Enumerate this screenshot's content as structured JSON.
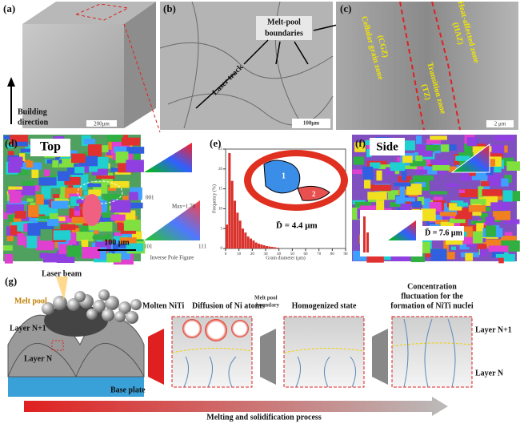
{
  "panels": {
    "a": {
      "label": "(a)",
      "axis_label": [
        "Building",
        "direction"
      ],
      "scale_bar": "200μm"
    },
    "b": {
      "label": "(b)",
      "callout": [
        "Melt-pool",
        "boundaries"
      ],
      "track": "Laser track",
      "scale_bar": "100μm"
    },
    "c": {
      "label": "(c)",
      "zones": [
        {
          "name": "Cellular grain zone",
          "abbr": "(CGZ)"
        },
        {
          "name": "Transition zone",
          "abbr": "(TZ)"
        },
        {
          "name": "Heat-affected zone",
          "abbr": "(HAZ)"
        }
      ],
      "scale_bar": "2 μm"
    },
    "d": {
      "label": "(d)",
      "view": "Top",
      "scale_bar": "100 μm",
      "ipf": {
        "max": "Max=1.79",
        "corners": [
          "001",
          "101",
          "111"
        ],
        "title": "Inverse Pole Figure"
      }
    },
    "e": {
      "label": "(e)",
      "mean": "D̄ = 4.4 μm",
      "grains": [
        "1",
        "2"
      ],
      "histogram": {
        "ylabel": "Frequency (%)",
        "xlabel": "Grain diameter (μm)",
        "bins": [
          0,
          2,
          4,
          6,
          8,
          10,
          12,
          14,
          16,
          18,
          20,
          22,
          24,
          26,
          28,
          30,
          32,
          34,
          36,
          38,
          40
        ],
        "values": [
          6,
          24,
          17,
          12,
          9,
          7,
          5,
          4,
          3,
          2.5,
          2,
          1.5,
          1.2,
          1,
          0.8,
          0.6,
          0.5,
          0.4,
          0.3,
          0.2
        ],
        "color": "#d9312b",
        "xlim": [
          0,
          90
        ],
        "xticks": [
          0,
          10,
          20,
          30,
          40,
          50,
          60,
          70,
          80,
          90
        ],
        "ylim": [
          0,
          25
        ],
        "yticks": [
          0,
          5,
          10,
          15,
          20,
          25
        ]
      }
    },
    "f": {
      "label": "(f)",
      "view": "Side",
      "mean": "D̄ = 7.6 μm"
    },
    "g": {
      "label": "(g)",
      "laser": "Laser beam",
      "melt_pool": "Melt pool",
      "layers_left": [
        "Layer N+1",
        "Layer N"
      ],
      "base": "Base plate",
      "molten": "Molten NiTi",
      "diffusion": "Diffusion of Ni atoms",
      "boundary": [
        "Melt pool",
        "boundary"
      ],
      "homogenized": "Homogenized state",
      "concentration": [
        "Concentration",
        "fluctuation for the",
        "formation of NiTi nuclei"
      ],
      "layers_right": [
        "Layer N+1",
        "Layer N"
      ],
      "process": "Melting and solidification process"
    }
  }
}
